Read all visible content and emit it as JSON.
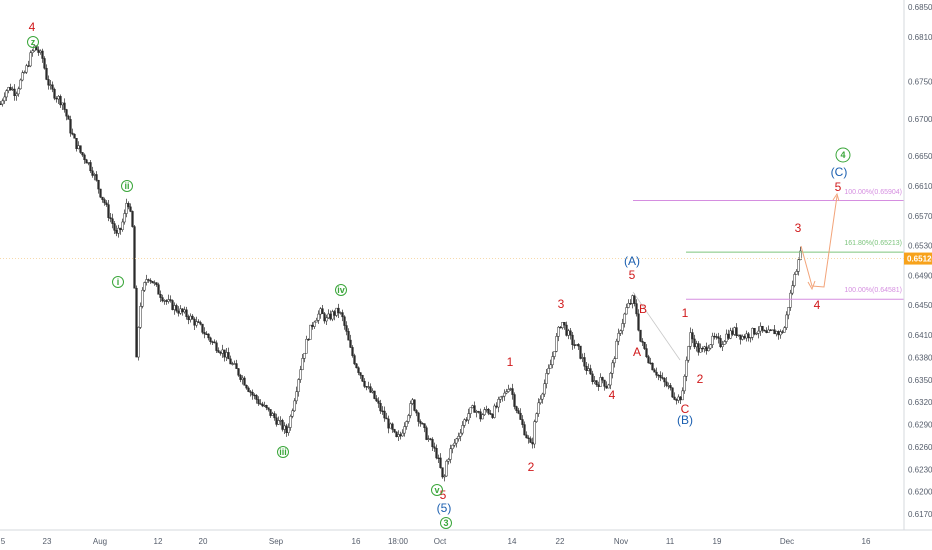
{
  "chart_data": {
    "type": "candlestick",
    "y_axis": {
      "ticks": [
        "0.68500",
        "0.68100",
        "0.67500",
        "0.67000",
        "0.66500",
        "0.66100",
        "0.65700",
        "0.65300",
        "0.64900",
        "0.64500",
        "0.64100",
        "0.63800",
        "0.63500",
        "0.63200",
        "0.62900",
        "0.62600",
        "0.62300",
        "0.62000",
        "0.61700"
      ],
      "range": [
        0.6155,
        0.687
      ]
    },
    "x_axis": {
      "ticks": [
        "5",
        "23",
        "Aug",
        "12",
        "20",
        "Sep",
        "16",
        "18:00",
        "Oct",
        "14",
        "22",
        "Nov",
        "11",
        "19",
        "Dec",
        "16"
      ]
    },
    "current_price": {
      "label": "0.65126",
      "value": 0.65126,
      "color": "#f7a21b"
    },
    "fib_levels": [
      {
        "label": "100.00%(0.65904)",
        "value": 0.65904,
        "color": "#d58ee0"
      },
      {
        "label": "161.80%(0.65213)",
        "value": 0.65213,
        "color": "#7cc47c"
      },
      {
        "label": "100.00%(0.64581)",
        "value": 0.64581,
        "color": "#d58ee0"
      }
    ],
    "price_path": [
      [
        0,
        0.672
      ],
      [
        5,
        0.6738
      ],
      [
        10,
        0.6742
      ],
      [
        15,
        0.6735
      ],
      [
        20,
        0.675
      ],
      [
        26,
        0.6768
      ],
      [
        30,
        0.6784
      ],
      [
        34,
        0.6796
      ],
      [
        38,
        0.679
      ],
      [
        42,
        0.6781
      ],
      [
        46,
        0.6756
      ],
      [
        50,
        0.674
      ],
      [
        56,
        0.673
      ],
      [
        62,
        0.6722
      ],
      [
        66,
        0.6704
      ],
      [
        70,
        0.6685
      ],
      [
        74,
        0.667
      ],
      [
        80,
        0.6655
      ],
      [
        86,
        0.6645
      ],
      [
        92,
        0.663
      ],
      [
        96,
        0.6615
      ],
      [
        100,
        0.66
      ],
      [
        104,
        0.6588
      ],
      [
        108,
        0.6572
      ],
      [
        112,
        0.656
      ],
      [
        116,
        0.6543
      ],
      [
        120,
        0.6552
      ],
      [
        124,
        0.657
      ],
      [
        127,
        0.6596
      ],
      [
        130,
        0.657
      ],
      [
        133,
        0.6545
      ],
      [
        135,
        0.64
      ],
      [
        136,
        0.6375
      ],
      [
        139,
        0.6445
      ],
      [
        143,
        0.6472
      ],
      [
        147,
        0.649
      ],
      [
        152,
        0.6482
      ],
      [
        158,
        0.6468
      ],
      [
        166,
        0.6455
      ],
      [
        176,
        0.6445
      ],
      [
        188,
        0.6435
      ],
      [
        200,
        0.642
      ],
      [
        212,
        0.64
      ],
      [
        222,
        0.6388
      ],
      [
        232,
        0.637
      ],
      [
        242,
        0.6352
      ],
      [
        252,
        0.633
      ],
      [
        262,
        0.6315
      ],
      [
        272,
        0.6302
      ],
      [
        280,
        0.629
      ],
      [
        286,
        0.628
      ],
      [
        290,
        0.63
      ],
      [
        296,
        0.634
      ],
      [
        302,
        0.638
      ],
      [
        308,
        0.641
      ],
      [
        314,
        0.6432
      ],
      [
        320,
        0.644
      ],
      [
        326,
        0.643
      ],
      [
        332,
        0.6438
      ],
      [
        338,
        0.6442
      ],
      [
        342,
        0.6432
      ],
      [
        346,
        0.6412
      ],
      [
        350,
        0.639
      ],
      [
        355,
        0.6372
      ],
      [
        360,
        0.6358
      ],
      [
        366,
        0.634
      ],
      [
        372,
        0.633
      ],
      [
        378,
        0.6315
      ],
      [
        384,
        0.63
      ],
      [
        390,
        0.6285
      ],
      [
        396,
        0.627
      ],
      [
        400,
        0.6275
      ],
      [
        406,
        0.63
      ],
      [
        412,
        0.632
      ],
      [
        418,
        0.63
      ],
      [
        424,
        0.628
      ],
      [
        430,
        0.6265
      ],
      [
        436,
        0.625
      ],
      [
        440,
        0.623
      ],
      [
        443,
        0.621
      ],
      [
        446,
        0.624
      ],
      [
        450,
        0.6255
      ],
      [
        456,
        0.627
      ],
      [
        462,
        0.629
      ],
      [
        468,
        0.6305
      ],
      [
        474,
        0.6312
      ],
      [
        480,
        0.63
      ],
      [
        486,
        0.631
      ],
      [
        492,
        0.6305
      ],
      [
        498,
        0.6318
      ],
      [
        504,
        0.633
      ],
      [
        509,
        0.6345
      ],
      [
        514,
        0.632
      ],
      [
        520,
        0.6295
      ],
      [
        526,
        0.6275
      ],
      [
        531,
        0.6258
      ],
      [
        534,
        0.629
      ],
      [
        538,
        0.632
      ],
      [
        544,
        0.6345
      ],
      [
        550,
        0.637
      ],
      [
        556,
        0.6405
      ],
      [
        561,
        0.643
      ],
      [
        566,
        0.6415
      ],
      [
        572,
        0.64
      ],
      [
        578,
        0.639
      ],
      [
        584,
        0.637
      ],
      [
        590,
        0.6355
      ],
      [
        596,
        0.6345
      ],
      [
        602,
        0.635
      ],
      [
        607,
        0.634
      ],
      [
        611,
        0.6362
      ],
      [
        615,
        0.639
      ],
      [
        620,
        0.642
      ],
      [
        626,
        0.6445
      ],
      [
        632,
        0.6458
      ],
      [
        636,
        0.644
      ],
      [
        640,
        0.6402
      ],
      [
        645,
        0.6388
      ],
      [
        650,
        0.6372
      ],
      [
        656,
        0.636
      ],
      [
        662,
        0.6348
      ],
      [
        668,
        0.634
      ],
      [
        673,
        0.633
      ],
      [
        678,
        0.6325
      ],
      [
        682,
        0.633
      ],
      [
        686,
        0.638
      ],
      [
        690,
        0.641
      ],
      [
        694,
        0.64
      ],
      [
        698,
        0.639
      ],
      [
        702,
        0.6388
      ],
      [
        708,
        0.6398
      ],
      [
        714,
        0.6405
      ],
      [
        720,
        0.6398
      ],
      [
        726,
        0.641
      ],
      [
        734,
        0.6415
      ],
      [
        742,
        0.6408
      ],
      [
        750,
        0.6412
      ],
      [
        758,
        0.6418
      ],
      [
        766,
        0.641
      ],
      [
        774,
        0.6415
      ],
      [
        780,
        0.6412
      ],
      [
        784,
        0.642
      ],
      [
        788,
        0.645
      ],
      [
        792,
        0.6478
      ],
      [
        796,
        0.65
      ],
      [
        799,
        0.6525
      ],
      [
        801,
        0.6512
      ]
    ]
  },
  "wave_labels": {
    "red": [
      "4",
      "5",
      "1",
      "2",
      "3",
      "4",
      "5",
      "A",
      "B",
      "C",
      "1",
      "2",
      "3",
      "4",
      "5"
    ],
    "blue": [
      "(5)",
      "(A)",
      "(B)",
      "(C)"
    ],
    "green": [
      "z",
      "ii",
      "i",
      "iv",
      "iii",
      "v",
      "3",
      "4"
    ]
  },
  "colors": {
    "candle": "#2a2a2a",
    "red_label": "#d0191b",
    "blue_label": "#1b5fb0",
    "green_label": "#3aa63a",
    "projection": "#f2a47a",
    "connector": "#c8c8c8"
  }
}
